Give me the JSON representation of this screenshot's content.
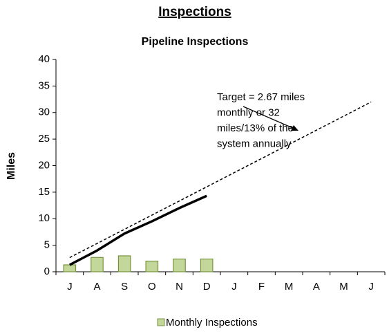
{
  "chart_data": {
    "type": "combo",
    "title": "Inspections",
    "subtitle": "Pipeline Inspections",
    "y_label": "Miles",
    "annotation": [
      "Target = 2.67 miles",
      "monthly or 32",
      "miles/13% of the",
      "system annually"
    ],
    "categories": [
      "J",
      "A",
      "S",
      "O",
      "N",
      "D",
      "J",
      "F",
      "M",
      "A",
      "M",
      "J"
    ],
    "series": [
      {
        "name": "Monthly Inspections",
        "type": "bar",
        "color": "#c4d79b",
        "edge_color": "#77933c",
        "values": [
          1.3,
          2.7,
          3.0,
          2.0,
          2.4,
          2.4,
          null,
          null,
          null,
          null,
          null,
          null
        ]
      },
      {
        "type": "line",
        "color": "#000000",
        "dashed": false,
        "values": [
          1.3,
          4.0,
          7.2,
          9.5,
          12.0,
          14.3,
          null,
          null,
          null,
          null,
          null,
          null
        ]
      },
      {
        "type": "line",
        "color": "#000000",
        "dashed": true,
        "values": [
          2.67,
          5.33,
          8.0,
          10.67,
          13.33,
          16.0,
          18.67,
          21.33,
          24.0,
          26.67,
          29.33,
          32.0
        ]
      }
    ],
    "ylim": [
      0,
      40
    ],
    "yticks": [
      0,
      5,
      10,
      15,
      20,
      25,
      30,
      35,
      40
    ],
    "grid": false,
    "legend": "bottom"
  }
}
